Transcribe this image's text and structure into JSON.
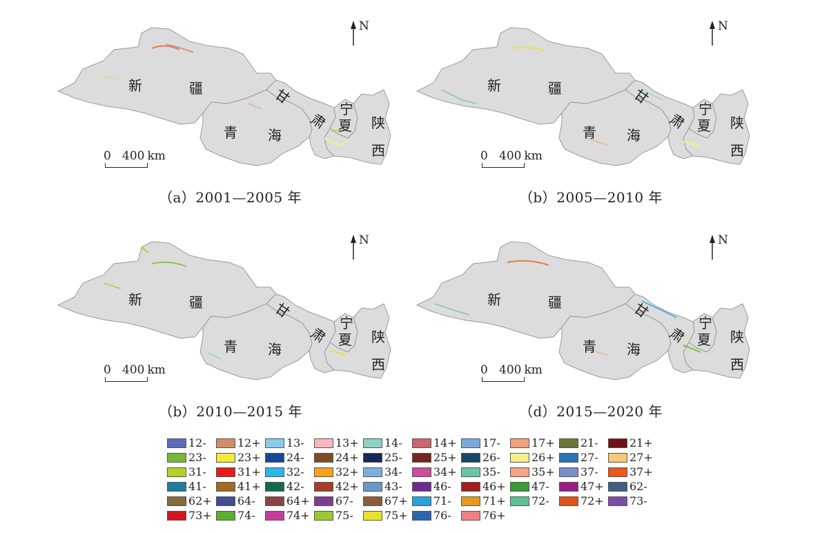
{
  "panels": [
    {
      "caption": "（a）2001—2005 年"
    },
    {
      "caption": "（b）2005—2010 年"
    },
    {
      "caption": "（b）2010—2015 年"
    },
    {
      "caption": "（d）2015—2020 年"
    }
  ],
  "map_labels": {
    "north": "N",
    "scale_zero": "0",
    "scale_400": "400",
    "scale_unit": "km",
    "xinjiang_1": "新",
    "xinjiang_2": "疆",
    "qinghai_1": "青",
    "qinghai_2": "海",
    "gansu_1": "甘",
    "gansu_2": "肃",
    "ningxia_1": "宁",
    "ningxia_2": "夏",
    "shaanxi_1": "陕",
    "shaanxi_2": "西"
  },
  "legend": [
    {
      "label": "12-",
      "color": "#5b6db8"
    },
    {
      "label": "12+",
      "color": "#d18c6a"
    },
    {
      "label": "13-",
      "color": "#86cde8"
    },
    {
      "label": "13+",
      "color": "#f7b8be"
    },
    {
      "label": "14-",
      "color": "#8fd3c6"
    },
    {
      "label": "14+",
      "color": "#cc6670"
    },
    {
      "label": "17-",
      "color": "#7aa9dc"
    },
    {
      "label": "17+",
      "color": "#f2a07c"
    },
    {
      "label": "21-",
      "color": "#6d7734"
    },
    {
      "label": "21+",
      "color": "#6e1216"
    },
    {
      "label": "23-",
      "color": "#78b836"
    },
    {
      "label": "23+",
      "color": "#f2ea3c"
    },
    {
      "label": "24-",
      "color": "#16479a"
    },
    {
      "label": "24+",
      "color": "#7a4f24"
    },
    {
      "label": "25-",
      "color": "#16275a"
    },
    {
      "label": "25+",
      "color": "#74261c"
    },
    {
      "label": "26-",
      "color": "#134a6a"
    },
    {
      "label": "26+",
      "color": "#f3ef8a"
    },
    {
      "label": "27-",
      "color": "#2b72b8"
    },
    {
      "label": "27+",
      "color": "#f7c97a"
    },
    {
      "label": "31-",
      "color": "#b5d128"
    },
    {
      "label": "31+",
      "color": "#e41a1c"
    },
    {
      "label": "32-",
      "color": "#2fb6e8"
    },
    {
      "label": "32+",
      "color": "#f5a223"
    },
    {
      "label": "34-",
      "color": "#7eaee0"
    },
    {
      "label": "34+",
      "color": "#c94d9c"
    },
    {
      "label": "35-",
      "color": "#6cc4a5"
    },
    {
      "label": "35+",
      "color": "#f4a483"
    },
    {
      "label": "37-",
      "color": "#7b8ec8"
    },
    {
      "label": "37+",
      "color": "#e8591e"
    },
    {
      "label": "41-",
      "color": "#1e7c9e"
    },
    {
      "label": "41+",
      "color": "#a36b22"
    },
    {
      "label": "42-",
      "color": "#136b4c"
    },
    {
      "label": "42+",
      "color": "#a83a26"
    },
    {
      "label": "43-",
      "color": "#6b97c6"
    },
    {
      "label": "46-",
      "color": "#6e2c8e"
    },
    {
      "label": "46+",
      "color": "#a61c23"
    },
    {
      "label": "47-",
      "color": "#3a9a3a"
    },
    {
      "label": "47+",
      "color": "#9b1c86"
    },
    {
      "label": "62-",
      "color": "#3e5f82"
    },
    {
      "label": "62+",
      "color": "#86693c"
    },
    {
      "label": "64-",
      "color": "#3e4e92"
    },
    {
      "label": "64+",
      "color": "#8e4244"
    },
    {
      "label": "67-",
      "color": "#7a3f8e"
    },
    {
      "label": "67+",
      "color": "#8c5d3c"
    },
    {
      "label": "71-",
      "color": "#27a3dc"
    },
    {
      "label": "71+",
      "color": "#e89a1c"
    },
    {
      "label": "72-",
      "color": "#5cc196"
    },
    {
      "label": "72+",
      "color": "#e05318"
    },
    {
      "label": "73-",
      "color": "#7e4ea0"
    },
    {
      "label": "73+",
      "color": "#d5141c"
    },
    {
      "label": "74-",
      "color": "#5aaf2c"
    },
    {
      "label": "74+",
      "color": "#c43d9a"
    },
    {
      "label": "75-",
      "color": "#9cc632"
    },
    {
      "label": "75+",
      "color": "#e8e22a"
    },
    {
      "label": "76-",
      "color": "#2a66b2"
    },
    {
      "label": "76+",
      "color": "#ef7f80"
    }
  ]
}
